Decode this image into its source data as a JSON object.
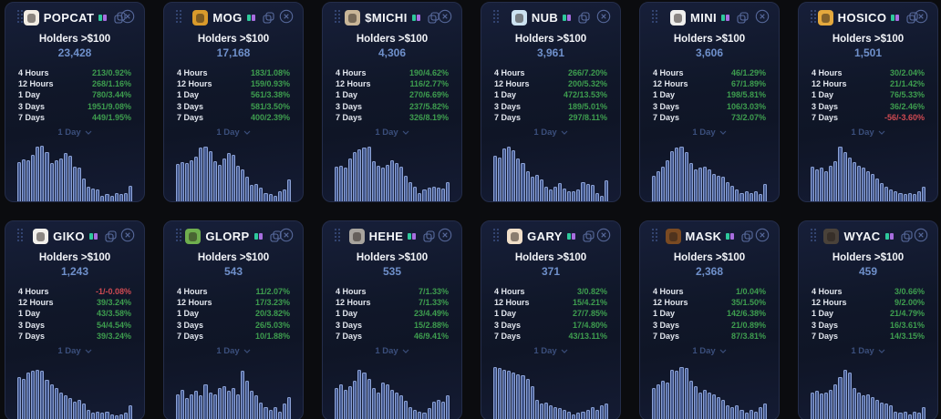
{
  "cards": [
    {
      "title": "POPCAT",
      "icon_color": "#f3ede4",
      "holders_label": "Holders >$100",
      "holders_value": "23,428",
      "timeframe": "1 Day",
      "stats": [
        {
          "label": "4 Hours",
          "value": "213/0.92%",
          "dir": "up"
        },
        {
          "label": "12 Hours",
          "value": "268/1.16%",
          "dir": "up"
        },
        {
          "label": "1 Day",
          "value": "780/3.44%",
          "dir": "up"
        },
        {
          "label": "3 Days",
          "value": "1951/9.08%",
          "dir": "up"
        },
        {
          "label": "7 Days",
          "value": "449/1.95%",
          "dir": "up"
        }
      ],
      "chart": [
        68,
        73,
        72,
        81,
        95,
        97,
        86,
        67,
        71,
        75,
        84,
        80,
        61,
        58,
        40,
        25,
        22,
        20,
        9,
        13,
        9,
        15,
        12,
        14,
        27
      ]
    },
    {
      "title": "MOG",
      "icon_color": "#d99a2b",
      "holders_label": "Holders >$100",
      "holders_value": "17,168",
      "timeframe": "1 Day",
      "stats": [
        {
          "label": "4 Hours",
          "value": "183/1.08%",
          "dir": "up"
        },
        {
          "label": "12 Hours",
          "value": "159/0.93%",
          "dir": "up"
        },
        {
          "label": "1 Day",
          "value": "561/3.38%",
          "dir": "up"
        },
        {
          "label": "3 Days",
          "value": "581/3.50%",
          "dir": "up"
        },
        {
          "label": "7 Days",
          "value": "400/2.39%",
          "dir": "up"
        }
      ],
      "chart": [
        65,
        68,
        66,
        72,
        78,
        93,
        95,
        88,
        70,
        64,
        74,
        84,
        81,
        62,
        55,
        42,
        28,
        30,
        24,
        14,
        12,
        10,
        17,
        21,
        38
      ]
    },
    {
      "title": "$MICHI",
      "icon_color": "#c9b698",
      "holders_label": "Holders >$100",
      "holders_value": "4,306",
      "timeframe": "1 Day",
      "stats": [
        {
          "label": "4 Hours",
          "value": "190/4.62%",
          "dir": "up"
        },
        {
          "label": "12 Hours",
          "value": "116/2.77%",
          "dir": "up"
        },
        {
          "label": "1 Day",
          "value": "270/6.69%",
          "dir": "up"
        },
        {
          "label": "3 Days",
          "value": "237/5.82%",
          "dir": "up"
        },
        {
          "label": "7 Days",
          "value": "326/8.19%",
          "dir": "up"
        }
      ],
      "chart": [
        60,
        62,
        58,
        74,
        86,
        90,
        93,
        95,
        70,
        62,
        58,
        64,
        71,
        67,
        61,
        45,
        34,
        26,
        14,
        20,
        23,
        26,
        24,
        22,
        34
      ]
    },
    {
      "title": "NUB",
      "icon_color": "#cde3f2",
      "holders_label": "Holders >$100",
      "holders_value": "3,961",
      "timeframe": "1 Day",
      "stats": [
        {
          "label": "4 Hours",
          "value": "266/7.20%",
          "dir": "up"
        },
        {
          "label": "12 Hours",
          "value": "200/5.32%",
          "dir": "up"
        },
        {
          "label": "1 Day",
          "value": "472/13.53%",
          "dir": "up"
        },
        {
          "label": "3 Days",
          "value": "189/5.01%",
          "dir": "up"
        },
        {
          "label": "7 Days",
          "value": "297/8.11%",
          "dir": "up"
        }
      ],
      "chart": [
        80,
        76,
        92,
        95,
        89,
        74,
        66,
        52,
        42,
        46,
        38,
        26,
        20,
        25,
        32,
        22,
        18,
        18,
        20,
        34,
        30,
        28,
        15,
        10,
        36
      ]
    },
    {
      "title": "MINI",
      "icon_color": "#f0efed",
      "holders_label": "Holders >$100",
      "holders_value": "3,606",
      "timeframe": "1 Day",
      "stats": [
        {
          "label": "4 Hours",
          "value": "46/1.29%",
          "dir": "up"
        },
        {
          "label": "12 Hours",
          "value": "67/1.89%",
          "dir": "up"
        },
        {
          "label": "1 Day",
          "value": "198/5.81%",
          "dir": "up"
        },
        {
          "label": "3 Days",
          "value": "106/3.03%",
          "dir": "up"
        },
        {
          "label": "7 Days",
          "value": "73/2.07%",
          "dir": "up"
        }
      ],
      "chart": [
        45,
        52,
        60,
        72,
        88,
        93,
        95,
        85,
        66,
        55,
        58,
        60,
        55,
        48,
        45,
        42,
        34,
        27,
        21,
        15,
        18,
        15,
        17,
        12,
        30
      ]
    },
    {
      "title": "HOSICO",
      "icon_color": "#e5a93d",
      "holders_label": "Holders >$100",
      "holders_value": "1,501",
      "timeframe": "1 Day",
      "stats": [
        {
          "label": "4 Hours",
          "value": "30/2.04%",
          "dir": "up"
        },
        {
          "label": "12 Hours",
          "value": "21/1.42%",
          "dir": "up"
        },
        {
          "label": "1 Day",
          "value": "76/5.33%",
          "dir": "up"
        },
        {
          "label": "3 Days",
          "value": "36/2.46%",
          "dir": "up"
        },
        {
          "label": "7 Days",
          "value": "-56/-3.60%",
          "dir": "down"
        }
      ],
      "chart": [
        60,
        55,
        58,
        52,
        62,
        70,
        95,
        85,
        76,
        68,
        62,
        58,
        52,
        48,
        40,
        32,
        25,
        20,
        18,
        15,
        12,
        15,
        12,
        18,
        25
      ]
    },
    {
      "title": "GIKO",
      "icon_color": "#f2f0ec",
      "holders_label": "Holders >$100",
      "holders_value": "1,243",
      "timeframe": "1 Day",
      "stats": [
        {
          "label": "4 Hours",
          "value": "-1/-0.08%",
          "dir": "down"
        },
        {
          "label": "12 Hours",
          "value": "39/3.24%",
          "dir": "up"
        },
        {
          "label": "1 Day",
          "value": "43/3.58%",
          "dir": "up"
        },
        {
          "label": "3 Days",
          "value": "54/4.54%",
          "dir": "up"
        },
        {
          "label": "7 Days",
          "value": "39/3.24%",
          "dir": "up"
        }
      ],
      "chart": [
        75,
        72,
        82,
        86,
        88,
        85,
        70,
        62,
        55,
        48,
        42,
        38,
        31,
        35,
        28,
        18,
        12,
        14,
        12,
        14,
        10,
        8,
        10,
        12,
        25
      ]
    },
    {
      "title": "GLORP",
      "icon_color": "#6fae4e",
      "holders_label": "Holders >$100",
      "holders_value": "543",
      "timeframe": "1 Day",
      "stats": [
        {
          "label": "4 Hours",
          "value": "11/2.07%",
          "dir": "up"
        },
        {
          "label": "12 Hours",
          "value": "17/3.23%",
          "dir": "up"
        },
        {
          "label": "1 Day",
          "value": "20/3.82%",
          "dir": "up"
        },
        {
          "label": "3 Days",
          "value": "26/5.03%",
          "dir": "up"
        },
        {
          "label": "7 Days",
          "value": "10/1.88%",
          "dir": "up"
        }
      ],
      "chart": [
        45,
        52,
        38,
        45,
        50,
        42,
        62,
        48,
        45,
        55,
        58,
        50,
        55,
        45,
        85,
        68,
        50,
        42,
        30,
        22,
        18,
        22,
        15,
        28,
        40
      ]
    },
    {
      "title": "HEHE",
      "icon_color": "#a8a49e",
      "holders_label": "Holders >$100",
      "holders_value": "535",
      "timeframe": "1 Day",
      "stats": [
        {
          "label": "4 Hours",
          "value": "7/1.33%",
          "dir": "up"
        },
        {
          "label": "12 Hours",
          "value": "7/1.33%",
          "dir": "up"
        },
        {
          "label": "1 Day",
          "value": "23/4.49%",
          "dir": "up"
        },
        {
          "label": "3 Days",
          "value": "15/2.88%",
          "dir": "up"
        },
        {
          "label": "7 Days",
          "value": "46/9.41%",
          "dir": "up"
        }
      ],
      "chart": [
        55,
        62,
        52,
        58,
        68,
        88,
        82,
        72,
        55,
        48,
        65,
        62,
        52,
        48,
        42,
        34,
        22,
        18,
        15,
        12,
        20,
        32,
        35,
        32,
        42
      ]
    },
    {
      "title": "GARY",
      "icon_color": "#f1dfc9",
      "holders_label": "Holders >$100",
      "holders_value": "371",
      "timeframe": "1 Day",
      "stats": [
        {
          "label": "4 Hours",
          "value": "3/0.82%",
          "dir": "up"
        },
        {
          "label": "12 Hours",
          "value": "15/4.21%",
          "dir": "up"
        },
        {
          "label": "1 Day",
          "value": "27/7.85%",
          "dir": "up"
        },
        {
          "label": "3 Days",
          "value": "17/4.80%",
          "dir": "up"
        },
        {
          "label": "7 Days",
          "value": "43/13.11%",
          "dir": "up"
        }
      ],
      "chart": [
        92,
        90,
        88,
        86,
        83,
        80,
        78,
        72,
        58,
        35,
        28,
        30,
        25,
        22,
        20,
        18,
        15,
        10,
        12,
        15,
        18,
        22,
        18,
        25,
        28
      ]
    },
    {
      "title": "MASK",
      "icon_color": "#7a4a22",
      "holders_label": "Holders >$100",
      "holders_value": "2,368",
      "timeframe": "1 Day",
      "stats": [
        {
          "label": "4 Hours",
          "value": "1/0.04%",
          "dir": "up"
        },
        {
          "label": "12 Hours",
          "value": "35/1.50%",
          "dir": "up"
        },
        {
          "label": "1 Day",
          "value": "142/6.38%",
          "dir": "up"
        },
        {
          "label": "3 Days",
          "value": "21/0.89%",
          "dir": "up"
        },
        {
          "label": "7 Days",
          "value": "87/3.81%",
          "dir": "up"
        }
      ],
      "chart": [
        55,
        62,
        68,
        65,
        88,
        85,
        92,
        90,
        68,
        58,
        48,
        52,
        48,
        45,
        40,
        35,
        25,
        22,
        25,
        18,
        12,
        18,
        15,
        22,
        28
      ]
    },
    {
      "title": "WYAC",
      "icon_color": "#4a423a",
      "holders_label": "Holders >$100",
      "holders_value": "459",
      "timeframe": "1 Day",
      "stats": [
        {
          "label": "4 Hours",
          "value": "3/0.66%",
          "dir": "up"
        },
        {
          "label": "12 Hours",
          "value": "9/2.00%",
          "dir": "up"
        },
        {
          "label": "1 Day",
          "value": "21/4.79%",
          "dir": "up"
        },
        {
          "label": "3 Days",
          "value": "16/3.61%",
          "dir": "up"
        },
        {
          "label": "7 Days",
          "value": "14/3.15%",
          "dir": "up"
        }
      ],
      "chart": [
        48,
        50,
        46,
        48,
        52,
        62,
        75,
        88,
        82,
        55,
        48,
        42,
        45,
        40,
        35,
        30,
        28,
        25,
        15,
        12,
        14,
        10,
        15,
        12,
        22
      ]
    }
  ],
  "colors": {
    "positive": "#3e9e4f",
    "negative": "#cf4a52",
    "holders_value": "#6f90cb",
    "bar_fill": "#44598f",
    "bar_border": "#8ca2d6",
    "badge_teal": "#2ec99c",
    "badge_purple": "#a86ee0"
  }
}
